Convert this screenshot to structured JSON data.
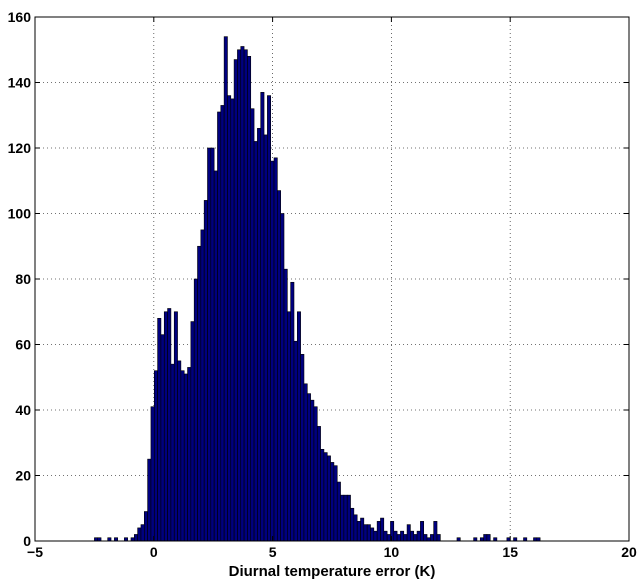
{
  "chart_data": {
    "type": "bar",
    "title": "",
    "xlabel": "Diurnal temperature error (K)",
    "ylabel": "",
    "xlim": [
      -5,
      20
    ],
    "ylim": [
      0,
      160
    ],
    "xticks": [
      -5,
      0,
      5,
      10,
      15,
      20
    ],
    "yticks": [
      0,
      20,
      40,
      60,
      80,
      100,
      120,
      140,
      160
    ],
    "xtick_labels": [
      "−5",
      "0",
      "5",
      "10",
      "15",
      "20"
    ],
    "ytick_labels": [
      "0",
      "20",
      "40",
      "60",
      "80",
      "100",
      "120",
      "140",
      "160"
    ],
    "grid": true,
    "bin_width": 0.14,
    "bar_color": "#00007f",
    "bar_edge_color": "#000000",
    "bins": [
      {
        "x": -2.43,
        "y": 1
      },
      {
        "x": -2.29,
        "y": 1
      },
      {
        "x": -1.87,
        "y": 1
      },
      {
        "x": -1.59,
        "y": 1
      },
      {
        "x": -1.17,
        "y": 1
      },
      {
        "x": -0.89,
        "y": 1
      },
      {
        "x": -0.75,
        "y": 2
      },
      {
        "x": -0.61,
        "y": 4
      },
      {
        "x": -0.47,
        "y": 5
      },
      {
        "x": -0.33,
        "y": 9
      },
      {
        "x": -0.19,
        "y": 25
      },
      {
        "x": -0.05,
        "y": 41
      },
      {
        "x": 0.09,
        "y": 52
      },
      {
        "x": 0.23,
        "y": 68
      },
      {
        "x": 0.37,
        "y": 63
      },
      {
        "x": 0.51,
        "y": 70
      },
      {
        "x": 0.65,
        "y": 71
      },
      {
        "x": 0.79,
        "y": 54
      },
      {
        "x": 0.93,
        "y": 70
      },
      {
        "x": 1.07,
        "y": 55
      },
      {
        "x": 1.21,
        "y": 52
      },
      {
        "x": 1.35,
        "y": 51
      },
      {
        "x": 1.49,
        "y": 53
      },
      {
        "x": 1.63,
        "y": 67
      },
      {
        "x": 1.77,
        "y": 80
      },
      {
        "x": 1.91,
        "y": 90
      },
      {
        "x": 2.05,
        "y": 95
      },
      {
        "x": 2.19,
        "y": 104
      },
      {
        "x": 2.33,
        "y": 120
      },
      {
        "x": 2.47,
        "y": 120
      },
      {
        "x": 2.61,
        "y": 113
      },
      {
        "x": 2.75,
        "y": 131
      },
      {
        "x": 2.89,
        "y": 133
      },
      {
        "x": 3.03,
        "y": 154
      },
      {
        "x": 3.17,
        "y": 136
      },
      {
        "x": 3.31,
        "y": 135
      },
      {
        "x": 3.45,
        "y": 147
      },
      {
        "x": 3.59,
        "y": 150
      },
      {
        "x": 3.73,
        "y": 151
      },
      {
        "x": 3.87,
        "y": 150
      },
      {
        "x": 4.01,
        "y": 148
      },
      {
        "x": 4.15,
        "y": 132
      },
      {
        "x": 4.29,
        "y": 122
      },
      {
        "x": 4.43,
        "y": 126
      },
      {
        "x": 4.57,
        "y": 137
      },
      {
        "x": 4.71,
        "y": 124
      },
      {
        "x": 4.85,
        "y": 136
      },
      {
        "x": 4.99,
        "y": 116
      },
      {
        "x": 5.13,
        "y": 117
      },
      {
        "x": 5.27,
        "y": 107
      },
      {
        "x": 5.41,
        "y": 100
      },
      {
        "x": 5.55,
        "y": 83
      },
      {
        "x": 5.69,
        "y": 70
      },
      {
        "x": 5.83,
        "y": 79
      },
      {
        "x": 5.97,
        "y": 61
      },
      {
        "x": 6.11,
        "y": 70
      },
      {
        "x": 6.25,
        "y": 57
      },
      {
        "x": 6.39,
        "y": 48
      },
      {
        "x": 6.53,
        "y": 45
      },
      {
        "x": 6.67,
        "y": 43
      },
      {
        "x": 6.81,
        "y": 41
      },
      {
        "x": 6.95,
        "y": 35
      },
      {
        "x": 7.09,
        "y": 28
      },
      {
        "x": 7.23,
        "y": 27
      },
      {
        "x": 7.37,
        "y": 26
      },
      {
        "x": 7.51,
        "y": 24
      },
      {
        "x": 7.65,
        "y": 23
      },
      {
        "x": 7.79,
        "y": 18
      },
      {
        "x": 7.93,
        "y": 14
      },
      {
        "x": 8.07,
        "y": 14
      },
      {
        "x": 8.21,
        "y": 14
      },
      {
        "x": 8.35,
        "y": 10
      },
      {
        "x": 8.49,
        "y": 8
      },
      {
        "x": 8.63,
        "y": 6
      },
      {
        "x": 8.77,
        "y": 7
      },
      {
        "x": 8.91,
        "y": 5
      },
      {
        "x": 9.05,
        "y": 5
      },
      {
        "x": 9.19,
        "y": 4
      },
      {
        "x": 9.33,
        "y": 3
      },
      {
        "x": 9.47,
        "y": 6
      },
      {
        "x": 9.61,
        "y": 7
      },
      {
        "x": 9.75,
        "y": 3
      },
      {
        "x": 9.89,
        "y": 2
      },
      {
        "x": 10.03,
        "y": 6
      },
      {
        "x": 10.17,
        "y": 3
      },
      {
        "x": 10.31,
        "y": 2
      },
      {
        "x": 10.45,
        "y": 3
      },
      {
        "x": 10.59,
        "y": 2
      },
      {
        "x": 10.73,
        "y": 5
      },
      {
        "x": 10.87,
        "y": 3
      },
      {
        "x": 11.01,
        "y": 2
      },
      {
        "x": 11.15,
        "y": 3
      },
      {
        "x": 11.29,
        "y": 6
      },
      {
        "x": 11.43,
        "y": 2
      },
      {
        "x": 11.57,
        "y": 1
      },
      {
        "x": 11.71,
        "y": 2
      },
      {
        "x": 11.85,
        "y": 6
      },
      {
        "x": 11.99,
        "y": 2
      },
      {
        "x": 12.83,
        "y": 1
      },
      {
        "x": 13.53,
        "y": 1
      },
      {
        "x": 13.81,
        "y": 1
      },
      {
        "x": 13.95,
        "y": 2
      },
      {
        "x": 14.09,
        "y": 2
      },
      {
        "x": 14.37,
        "y": 1
      },
      {
        "x": 14.93,
        "y": 1
      },
      {
        "x": 15.21,
        "y": 1
      },
      {
        "x": 15.63,
        "y": 1
      },
      {
        "x": 16.05,
        "y": 1
      },
      {
        "x": 16.19,
        "y": 1
      }
    ]
  }
}
